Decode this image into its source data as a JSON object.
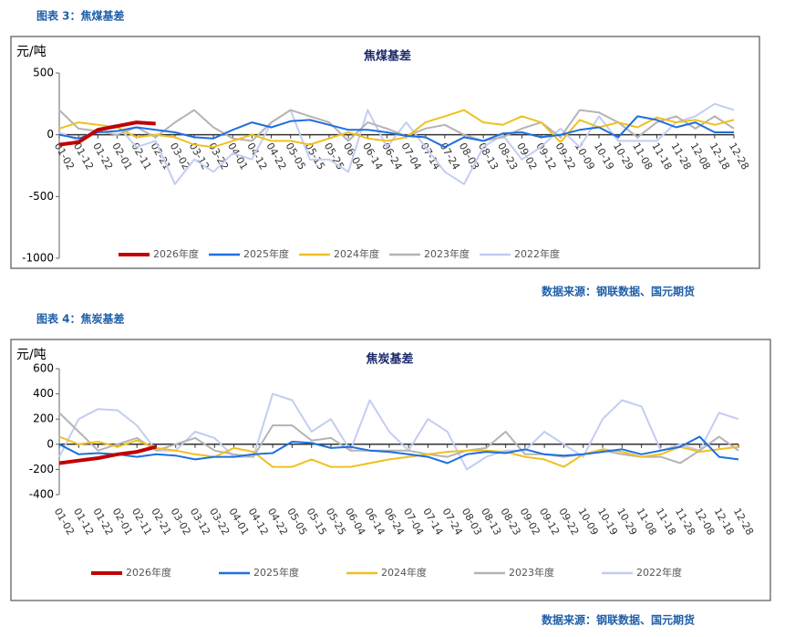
{
  "chart_data": [
    {
      "type": "line",
      "caption": "图表 3：焦煤基差",
      "title": "焦煤基差",
      "y_label": "元/吨",
      "source": "数据来源：钢联数据、国元期货",
      "categories": [
        "01-02",
        "01-12",
        "01-22",
        "02-01",
        "02-11",
        "02-21",
        "03-02",
        "03-12",
        "03-22",
        "04-01",
        "04-12",
        "04-22",
        "05-05",
        "05-15",
        "05-25",
        "06-04",
        "06-14",
        "06-24",
        "07-04",
        "07-14",
        "07-24",
        "08-03",
        "08-13",
        "08-23",
        "09-02",
        "09-12",
        "09-22",
        "10-09",
        "10-19",
        "10-29",
        "11-08",
        "11-18",
        "11-28",
        "12-08",
        "12-18",
        "12-28"
      ],
      "ylim": [
        -1000,
        500
      ],
      "yticks": [
        -1000,
        -500,
        0,
        500
      ],
      "series": [
        {
          "name": "2026年度",
          "color": "#c00000",
          "values": [
            -80,
            -60,
            40,
            70,
            100,
            90,
            null,
            null,
            null,
            null,
            null,
            null,
            null,
            null,
            null,
            null,
            null,
            null,
            null,
            null,
            null,
            null,
            null,
            null,
            null,
            null,
            null,
            null,
            null,
            null,
            null,
            null,
            null,
            null,
            null,
            null
          ]
        },
        {
          "name": "2025年度",
          "color": "#1f6fe0",
          "values": [
            0,
            -30,
            20,
            30,
            60,
            40,
            20,
            -20,
            -30,
            40,
            100,
            60,
            110,
            120,
            80,
            40,
            40,
            20,
            -10,
            -20,
            -100,
            -20,
            -50,
            10,
            20,
            -20,
            0,
            40,
            60,
            -20,
            150,
            120,
            60,
            100,
            20,
            20
          ]
        },
        {
          "name": "2024年度",
          "color": "#f0c020",
          "values": [
            50,
            100,
            80,
            60,
            -20,
            0,
            -20,
            -80,
            -100,
            -50,
            0,
            -50,
            -50,
            -80,
            -30,
            20,
            -30,
            -50,
            -20,
            100,
            150,
            200,
            100,
            80,
            150,
            100,
            -60,
            120,
            60,
            100,
            60,
            140,
            100,
            120,
            80,
            120
          ]
        },
        {
          "name": "2023年度",
          "color": "#b4b4b4",
          "values": [
            200,
            50,
            30,
            0,
            60,
            -20,
            100,
            200,
            60,
            -30,
            -50,
            100,
            200,
            150,
            100,
            -50,
            100,
            50,
            -10,
            50,
            80,
            0,
            -50,
            -20,
            50,
            100,
            -20,
            200,
            180,
            100,
            -20,
            100,
            150,
            50,
            150,
            50
          ]
        },
        {
          "name": "2022年度",
          "color": "#c3cdf2",
          "values": [
            20,
            -50,
            50,
            80,
            -100,
            -50,
            -400,
            -200,
            -300,
            -150,
            -200,
            100,
            200,
            -200,
            -200,
            -300,
            200,
            -100,
            100,
            -100,
            -300,
            -400,
            -100,
            0,
            -200,
            -100,
            50,
            -100,
            150,
            -50,
            -50,
            -50,
            100,
            150,
            250,
            200
          ]
        }
      ]
    },
    {
      "type": "line",
      "caption": "图表 4：焦炭基差",
      "title": "焦炭基差",
      "y_label": "元/吨",
      "source": "数据来源：钢联数据、国元期货",
      "categories": [
        "01-02",
        "01-12",
        "01-22",
        "02-01",
        "02-11",
        "02-21",
        "03-02",
        "03-12",
        "03-22",
        "04-01",
        "04-12",
        "04-22",
        "05-05",
        "05-15",
        "05-25",
        "06-04",
        "06-14",
        "06-24",
        "07-04",
        "07-14",
        "07-24",
        "08-03",
        "08-13",
        "08-23",
        "09-02",
        "09-12",
        "09-22",
        "10-09",
        "10-19",
        "10-29",
        "11-08",
        "11-18",
        "11-28",
        "12-08",
        "12-18",
        "12-28"
      ],
      "ylim": [
        -400,
        600
      ],
      "yticks": [
        -400,
        -200,
        0,
        200,
        400,
        600
      ],
      "series": [
        {
          "name": "2026年度",
          "color": "#c00000",
          "values": [
            -150,
            -130,
            -110,
            -80,
            -60,
            -20,
            null,
            null,
            null,
            null,
            null,
            null,
            null,
            null,
            null,
            null,
            null,
            null,
            null,
            null,
            null,
            null,
            null,
            null,
            null,
            null,
            null,
            null,
            null,
            null,
            null,
            null,
            null,
            null,
            null,
            null
          ]
        },
        {
          "name": "2025年度",
          "color": "#1f6fe0",
          "values": [
            0,
            -80,
            -70,
            -80,
            -100,
            -80,
            -90,
            -120,
            -100,
            -100,
            -80,
            -70,
            20,
            10,
            -30,
            -20,
            -50,
            -60,
            -80,
            -100,
            -150,
            -80,
            -60,
            -70,
            -40,
            -80,
            -90,
            -80,
            -60,
            -40,
            -80,
            -50,
            -20,
            60,
            -100,
            -120
          ]
        },
        {
          "name": "2024年度",
          "color": "#f0c020",
          "values": [
            60,
            0,
            20,
            -20,
            30,
            -30,
            -50,
            -80,
            -100,
            -30,
            -60,
            -180,
            -180,
            -120,
            -180,
            -180,
            -150,
            -120,
            -100,
            -80,
            -60,
            -50,
            -50,
            -60,
            -100,
            -120,
            -180,
            -80,
            -40,
            -60,
            -100,
            -80,
            -20,
            -60,
            -40,
            -20
          ]
        },
        {
          "name": "2023年度",
          "color": "#b4b4b4",
          "values": [
            250,
            100,
            -50,
            0,
            50,
            -50,
            0,
            50,
            -50,
            -80,
            -100,
            150,
            150,
            30,
            50,
            -50,
            -50,
            -50,
            -50,
            -80,
            -100,
            -50,
            -30,
            100,
            -80,
            -80,
            -100,
            -80,
            -50,
            -80,
            -100,
            -100,
            -150,
            -50,
            60,
            -50
          ]
        },
        {
          "name": "2022年度",
          "color": "#c3cdf2",
          "values": [
            -100,
            200,
            280,
            270,
            150,
            -50,
            -50,
            100,
            50,
            -100,
            -100,
            400,
            350,
            100,
            200,
            -50,
            350,
            100,
            -50,
            200,
            100,
            -200,
            -100,
            -50,
            -50,
            100,
            0,
            -100,
            200,
            350,
            300,
            -50,
            0,
            -50,
            250,
            200
          ]
        }
      ]
    }
  ]
}
